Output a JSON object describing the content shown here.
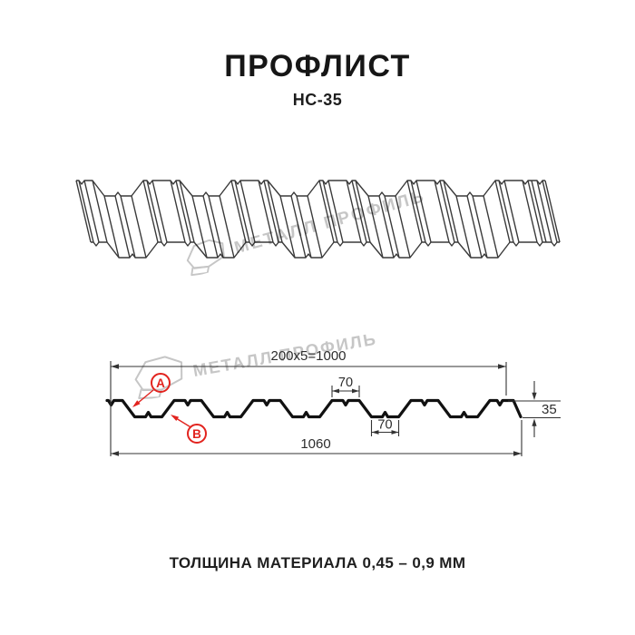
{
  "page": {
    "title": "ПРОФЛИСТ",
    "subtitle": "НС-35",
    "footer": "ТОЛЩИНА МАТЕРИАЛА 0,45 – 0,9 ММ"
  },
  "watermark": {
    "brand": "МЕТАЛЛ ПРОФИЛЬ"
  },
  "section": {
    "dim_coverage": "200x5=1000",
    "dim_rib_top": "70",
    "dim_rib_bottom": "70",
    "dim_height": "35",
    "dim_overall": "1060",
    "marker_a": "А",
    "marker_b": "В"
  },
  "colors": {
    "accent_red": "#e2231e",
    "line": "#3a3a3a",
    "profile_black": "#111111",
    "watermark": "#c6c6c6"
  }
}
